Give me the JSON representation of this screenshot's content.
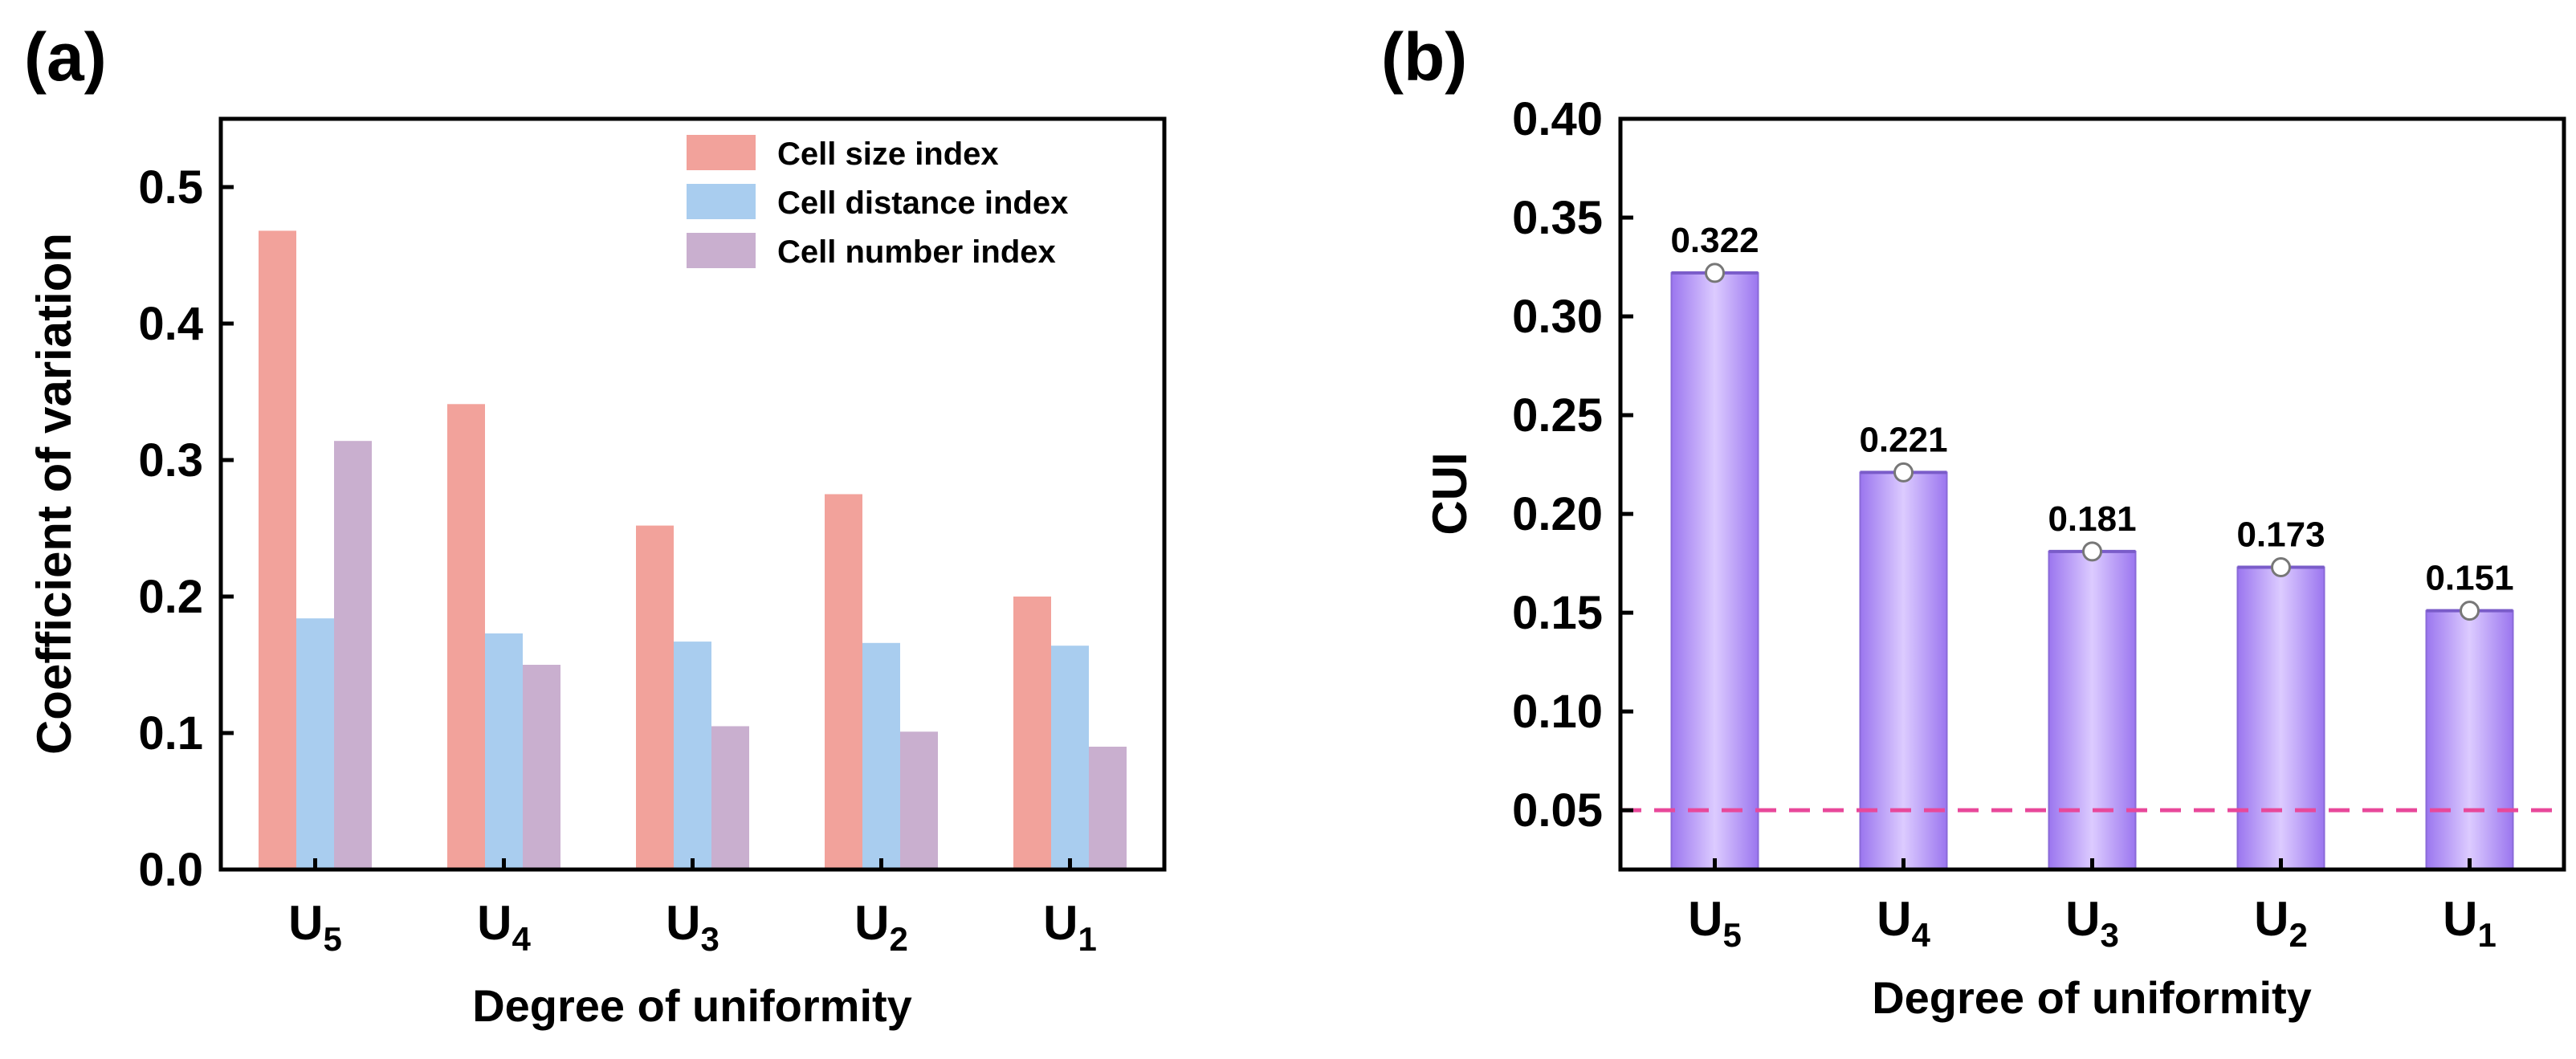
{
  "panels": {
    "a": {
      "label": "(a)"
    },
    "b": {
      "label": "(b)"
    }
  },
  "chart_data": [
    {
      "type": "bar",
      "panel": "(a)",
      "title": "",
      "xlabel": "Degree of uniformity",
      "ylabel": "Coefficient of variation",
      "categories": [
        {
          "base": "U",
          "sub": "5"
        },
        {
          "base": "U",
          "sub": "4"
        },
        {
          "base": "U",
          "sub": "3"
        },
        {
          "base": "U",
          "sub": "2"
        },
        {
          "base": "U",
          "sub": "1"
        }
      ],
      "series": [
        {
          "name": "Cell size index",
          "color": "#f2a29b",
          "values": [
            0.468,
            0.341,
            0.252,
            0.275,
            0.2
          ]
        },
        {
          "name": "Cell distance index",
          "color": "#a9cdef",
          "values": [
            0.184,
            0.173,
            0.167,
            0.166,
            0.164
          ]
        },
        {
          "name": "Cell number index",
          "color": "#c9afcf",
          "values": [
            0.314,
            0.15,
            0.105,
            0.101,
            0.09
          ]
        }
      ],
      "ylim": [
        0,
        0.55
      ],
      "yticks": [
        "0.0",
        "0.1",
        "0.2",
        "0.3",
        "0.4",
        "0.5"
      ],
      "ytick_values": [
        0,
        0.1,
        0.2,
        0.3,
        0.4,
        0.5
      ],
      "legend_position": "top-right",
      "grid": false
    },
    {
      "type": "bar",
      "panel": "(b)",
      "title": "",
      "xlabel": "Degree of uniformity",
      "ylabel": "CUI",
      "categories": [
        {
          "base": "U",
          "sub": "5"
        },
        {
          "base": "U",
          "sub": "4"
        },
        {
          "base": "U",
          "sub": "3"
        },
        {
          "base": "U",
          "sub": "2"
        },
        {
          "base": "U",
          "sub": "1"
        }
      ],
      "values": [
        0.322,
        0.221,
        0.181,
        0.173,
        0.151
      ],
      "data_labels": [
        "0.322",
        "0.221",
        "0.181",
        "0.173",
        "0.151"
      ],
      "bar_color": "#b59cf5",
      "reference_line": {
        "y": 0.05,
        "color": "#e8489a",
        "style": "dashed"
      },
      "ylim": [
        0.02,
        0.4
      ],
      "yticks": [
        "0.05",
        "0.10",
        "0.15",
        "0.20",
        "0.25",
        "0.30",
        "0.35",
        "0.40"
      ],
      "ytick_values": [
        0.05,
        0.1,
        0.15,
        0.2,
        0.25,
        0.3,
        0.35,
        0.4
      ],
      "grid": false
    }
  ]
}
